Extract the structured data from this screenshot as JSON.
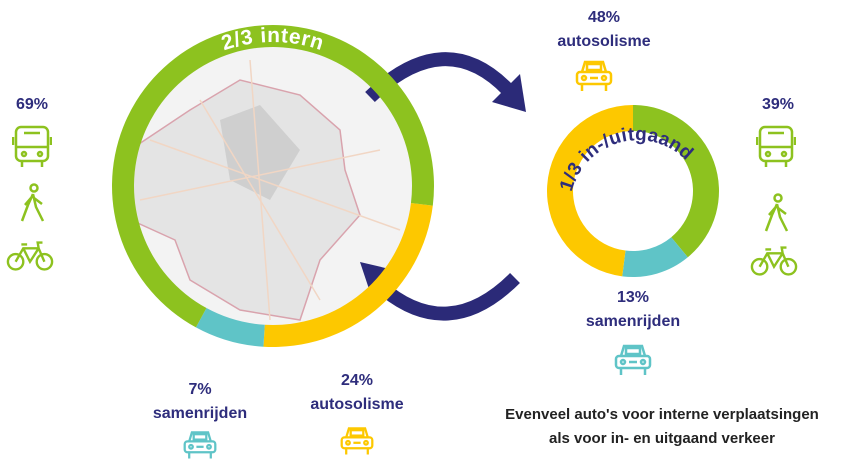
{
  "chart_data": [
    {
      "type": "donut",
      "title": "2/3 intern",
      "categories": [
        "autosolisme",
        "samenrijden",
        null
      ],
      "values": [
        24,
        7,
        69
      ],
      "value_labels": [
        "24%",
        "7%",
        "69%"
      ],
      "colors": [
        "#fdc800",
        "#5fc4c7",
        "#8dc21f"
      ]
    },
    {
      "type": "donut",
      "title": "1/3 in-/uitgaand",
      "categories": [
        null,
        "samenrijden",
        "autosolisme"
      ],
      "values": [
        39,
        13,
        48
      ],
      "value_labels": [
        "39%",
        "13%",
        "48%"
      ],
      "colors": [
        "#8dc21f",
        "#5fc4c7",
        "#fdc800"
      ]
    }
  ],
  "caption": [
    "Evenveel auto's voor interne verplaatsingen",
    "als voor in- en uitgaand verkeer"
  ]
}
